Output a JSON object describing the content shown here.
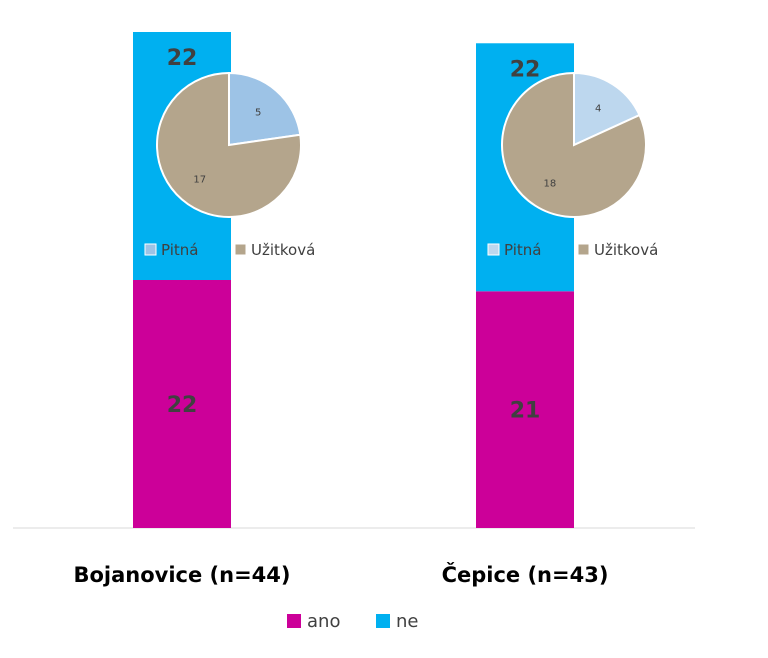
{
  "chart_data": [
    {
      "type": "bar",
      "stacked": true,
      "categories": [
        "Bojanovice (n=44)",
        "Čepice (n=43)"
      ],
      "series": [
        {
          "name": "ano",
          "color": "#cc0099",
          "values": [
            22,
            21
          ]
        },
        {
          "name": "ne",
          "color": "#00b0f0",
          "values": [
            22,
            22
          ]
        }
      ],
      "ylim": [
        0,
        44
      ],
      "grid": false,
      "legend": "bottom"
    },
    {
      "type": "pie",
      "category": "Bojanovice (n=44)",
      "labels": [
        "Pitná",
        "Užitková"
      ],
      "values": [
        5,
        17
      ],
      "colors": [
        "#9dc3e6",
        "#b4a58c"
      ],
      "legend": "bottom"
    },
    {
      "type": "pie",
      "category": "Čepice (n=43)",
      "labels": [
        "Pitná",
        "Užitková"
      ],
      "values": [
        4,
        18
      ],
      "colors": [
        "#bdd7ee",
        "#b4a58c"
      ],
      "legend": "bottom"
    }
  ]
}
